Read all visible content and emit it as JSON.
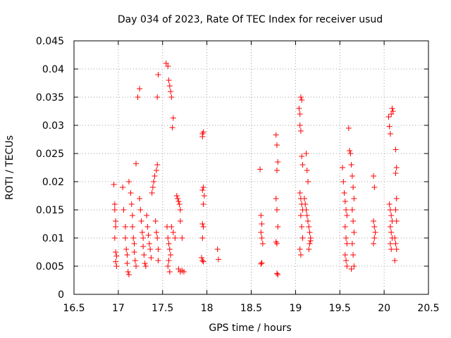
{
  "chart_data": {
    "type": "scatter",
    "title": "Day 034 of 2023, Rate Of TEC Index for receiver usud",
    "xlabel": "GPS time / hours",
    "ylabel": "ROTI / TECUs",
    "xlim": [
      16.5,
      20.5
    ],
    "ylim": [
      0,
      0.045
    ],
    "x_ticks": [
      16.5,
      17,
      17.5,
      18,
      18.5,
      19,
      19.5,
      20,
      20.5
    ],
    "x_tick_labels": [
      "16.5",
      "17",
      "17.5",
      "18",
      "18.5",
      "19",
      "19.5",
      "20",
      "20.5"
    ],
    "y_ticks": [
      0,
      0.005,
      0.01,
      0.015,
      0.02,
      0.025,
      0.03,
      0.035,
      0.04,
      0.045
    ],
    "y_tick_labels": [
      "0",
      "0.005",
      "0.01",
      "0.015",
      "0.02",
      "0.025",
      "0.03",
      "0.035",
      "0.04",
      "0.045"
    ],
    "grid": true,
    "marker": "+",
    "series": [
      {
        "name": "ROTI",
        "color": "#ff0000",
        "points": [
          [
            16.95,
            0.0195
          ],
          [
            16.96,
            0.016
          ],
          [
            16.96,
            0.015
          ],
          [
            16.97,
            0.013
          ],
          [
            16.97,
            0.012
          ],
          [
            16.96,
            0.01
          ],
          [
            16.97,
            0.0075
          ],
          [
            16.98,
            0.0068
          ],
          [
            16.97,
            0.0058
          ],
          [
            16.98,
            0.005
          ],
          [
            17.05,
            0.019
          ],
          [
            17.06,
            0.015
          ],
          [
            17.08,
            0.012
          ],
          [
            17.08,
            0.01
          ],
          [
            17.09,
            0.008
          ],
          [
            17.1,
            0.007
          ],
          [
            17.1,
            0.0055
          ],
          [
            17.11,
            0.004
          ],
          [
            17.12,
            0.0035
          ],
          [
            17.12,
            0.02
          ],
          [
            17.14,
            0.018
          ],
          [
            17.15,
            0.016
          ],
          [
            17.16,
            0.014
          ],
          [
            17.16,
            0.012
          ],
          [
            17.17,
            0.01
          ],
          [
            17.18,
            0.009
          ],
          [
            17.18,
            0.0075
          ],
          [
            17.19,
            0.006
          ],
          [
            17.2,
            0.005
          ],
          [
            17.2,
            0.0232
          ],
          [
            17.22,
            0.035
          ],
          [
            17.24,
            0.0365
          ],
          [
            17.24,
            0.017
          ],
          [
            17.25,
            0.015
          ],
          [
            17.26,
            0.013
          ],
          [
            17.27,
            0.011
          ],
          [
            17.28,
            0.01
          ],
          [
            17.28,
            0.0085
          ],
          [
            17.29,
            0.007
          ],
          [
            17.3,
            0.0055
          ],
          [
            17.31,
            0.005
          ],
          [
            17.32,
            0.014
          ],
          [
            17.33,
            0.012
          ],
          [
            17.34,
            0.0105
          ],
          [
            17.35,
            0.009
          ],
          [
            17.36,
            0.008
          ],
          [
            17.37,
            0.0065
          ],
          [
            17.38,
            0.018
          ],
          [
            17.39,
            0.019
          ],
          [
            17.4,
            0.02
          ],
          [
            17.41,
            0.021
          ],
          [
            17.42,
            0.013
          ],
          [
            17.43,
            0.011
          ],
          [
            17.44,
            0.01
          ],
          [
            17.45,
            0.008
          ],
          [
            17.45,
            0.006
          ],
          [
            17.44,
            0.035
          ],
          [
            17.45,
            0.039
          ],
          [
            17.44,
            0.023
          ],
          [
            17.43,
            0.022
          ],
          [
            17.54,
            0.041
          ],
          [
            17.56,
            0.0405
          ],
          [
            17.57,
            0.038
          ],
          [
            17.58,
            0.037
          ],
          [
            17.59,
            0.036
          ],
          [
            17.6,
            0.035
          ],
          [
            17.62,
            0.0313
          ],
          [
            17.61,
            0.0296
          ],
          [
            17.55,
            0.012
          ],
          [
            17.56,
            0.01
          ],
          [
            17.57,
            0.009
          ],
          [
            17.58,
            0.008
          ],
          [
            17.59,
            0.007
          ],
          [
            17.57,
            0.006
          ],
          [
            17.56,
            0.005
          ],
          [
            17.58,
            0.004
          ],
          [
            17.6,
            0.012
          ],
          [
            17.62,
            0.011
          ],
          [
            17.64,
            0.01
          ],
          [
            17.66,
            0.0175
          ],
          [
            17.67,
            0.017
          ],
          [
            17.68,
            0.0165
          ],
          [
            17.69,
            0.016
          ],
          [
            17.7,
            0.015
          ],
          [
            17.7,
            0.013
          ],
          [
            17.68,
            0.0045
          ],
          [
            17.7,
            0.004
          ],
          [
            17.72,
            0.0042
          ],
          [
            17.74,
            0.004
          ],
          [
            17.72,
            0.01
          ],
          [
            17.95,
            0.0285
          ],
          [
            17.96,
            0.0288
          ],
          [
            17.95,
            0.028
          ],
          [
            17.96,
            0.019
          ],
          [
            17.95,
            0.0185
          ],
          [
            17.97,
            0.0175
          ],
          [
            17.96,
            0.016
          ],
          [
            17.95,
            0.0125
          ],
          [
            17.96,
            0.012
          ],
          [
            17.95,
            0.01
          ],
          [
            17.94,
            0.0065
          ],
          [
            17.95,
            0.006
          ],
          [
            17.96,
            0.0058
          ],
          [
            18.12,
            0.008
          ],
          [
            18.13,
            0.0062
          ],
          [
            18.6,
            0.0222
          ],
          [
            18.61,
            0.014
          ],
          [
            18.62,
            0.0125
          ],
          [
            18.61,
            0.011
          ],
          [
            18.62,
            0.01
          ],
          [
            18.63,
            0.009
          ],
          [
            18.62,
            0.0056
          ],
          [
            18.61,
            0.0054
          ],
          [
            18.78,
            0.0283
          ],
          [
            18.79,
            0.0265
          ],
          [
            18.8,
            0.0235
          ],
          [
            18.79,
            0.022
          ],
          [
            18.78,
            0.017
          ],
          [
            18.79,
            0.015
          ],
          [
            18.8,
            0.012
          ],
          [
            18.79,
            0.009
          ],
          [
            18.78,
            0.0093
          ],
          [
            18.79,
            0.0037
          ],
          [
            18.8,
            0.0035
          ],
          [
            19.04,
            0.033
          ],
          [
            19.05,
            0.032
          ],
          [
            19.06,
            0.035
          ],
          [
            19.07,
            0.0345
          ],
          [
            19.05,
            0.03
          ],
          [
            19.06,
            0.029
          ],
          [
            19.07,
            0.0245
          ],
          [
            19.08,
            0.023
          ],
          [
            19.05,
            0.018
          ],
          [
            19.06,
            0.017
          ],
          [
            19.07,
            0.016
          ],
          [
            19.08,
            0.015
          ],
          [
            19.06,
            0.014
          ],
          [
            19.07,
            0.012
          ],
          [
            19.08,
            0.01
          ],
          [
            19.05,
            0.008
          ],
          [
            19.06,
            0.007
          ],
          [
            19.1,
            0.017
          ],
          [
            19.11,
            0.016
          ],
          [
            19.12,
            0.015
          ],
          [
            19.13,
            0.014
          ],
          [
            19.14,
            0.013
          ],
          [
            19.15,
            0.012
          ],
          [
            19.16,
            0.011
          ],
          [
            19.17,
            0.01
          ],
          [
            19.12,
            0.025
          ],
          [
            19.13,
            0.022
          ],
          [
            19.14,
            0.02
          ],
          [
            19.15,
            0.008
          ],
          [
            19.16,
            0.009
          ],
          [
            19.17,
            0.0095
          ],
          [
            19.53,
            0.0225
          ],
          [
            19.54,
            0.02
          ],
          [
            19.55,
            0.018
          ],
          [
            19.56,
            0.0165
          ],
          [
            19.57,
            0.015
          ],
          [
            19.58,
            0.014
          ],
          [
            19.56,
            0.012
          ],
          [
            19.57,
            0.01
          ],
          [
            19.58,
            0.009
          ],
          [
            19.56,
            0.007
          ],
          [
            19.57,
            0.006
          ],
          [
            19.58,
            0.005
          ],
          [
            19.6,
            0.0295
          ],
          [
            19.61,
            0.0255
          ],
          [
            19.62,
            0.025
          ],
          [
            19.63,
            0.023
          ],
          [
            19.64,
            0.021
          ],
          [
            19.65,
            0.019
          ],
          [
            19.66,
            0.017
          ],
          [
            19.64,
            0.015
          ],
          [
            19.65,
            0.013
          ],
          [
            19.66,
            0.011
          ],
          [
            19.64,
            0.009
          ],
          [
            19.65,
            0.007
          ],
          [
            19.66,
            0.005
          ],
          [
            19.63,
            0.0045
          ],
          [
            19.88,
            0.021
          ],
          [
            19.89,
            0.019
          ],
          [
            19.88,
            0.013
          ],
          [
            19.89,
            0.012
          ],
          [
            19.9,
            0.011
          ],
          [
            19.89,
            0.01
          ],
          [
            19.88,
            0.009
          ],
          [
            20.05,
            0.0315
          ],
          [
            20.06,
            0.0298
          ],
          [
            20.07,
            0.0285
          ],
          [
            20.08,
            0.032
          ],
          [
            20.09,
            0.033
          ],
          [
            20.1,
            0.0325
          ],
          [
            20.06,
            0.016
          ],
          [
            20.07,
            0.015
          ],
          [
            20.08,
            0.014
          ],
          [
            20.09,
            0.013
          ],
          [
            20.07,
            0.012
          ],
          [
            20.08,
            0.011
          ],
          [
            20.09,
            0.01
          ],
          [
            20.07,
            0.009
          ],
          [
            20.08,
            0.008
          ],
          [
            20.13,
            0.0257
          ],
          [
            20.14,
            0.0225
          ],
          [
            20.13,
            0.0215
          ],
          [
            20.14,
            0.017
          ],
          [
            20.13,
            0.015
          ],
          [
            20.14,
            0.013
          ],
          [
            20.12,
            0.01
          ],
          [
            20.13,
            0.009
          ],
          [
            20.14,
            0.008
          ],
          [
            20.12,
            0.006
          ]
        ]
      }
    ]
  }
}
